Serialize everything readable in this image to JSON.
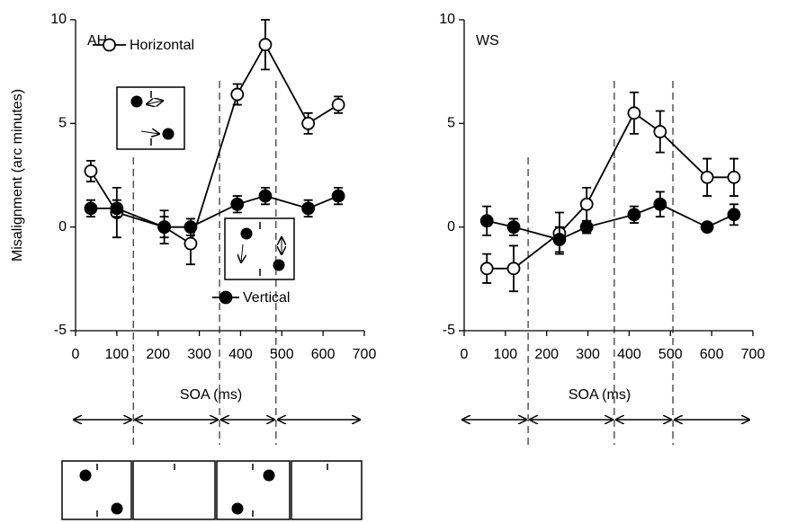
{
  "chart_data": [
    {
      "type": "line",
      "label": "AH",
      "xlabel": "SOA (ms)",
      "ylabel": "Misalignment (arc minutes)",
      "x": [
        37,
        100,
        215,
        279,
        392,
        460,
        564,
        637
      ],
      "series": [
        {
          "name": "Horizontal",
          "marker": "open",
          "color": "#000000",
          "values": [
            2.7,
            0.7,
            0,
            -0.8,
            6.4,
            8.8,
            5.0,
            5.9
          ],
          "errors": [
            0.5,
            1.2,
            0.8,
            1.0,
            0.5,
            1.2,
            0.5,
            0.4
          ]
        },
        {
          "name": "Vertical",
          "marker": "filled",
          "color": "#000000",
          "values": [
            0.9,
            0.9,
            0,
            0,
            1.1,
            1.5,
            0.9,
            1.5
          ],
          "errors": [
            0.4,
            0.4,
            0.5,
            0.4,
            0.4,
            0.4,
            0.4,
            0.4
          ]
        }
      ],
      "xlim": [
        0,
        700
      ],
      "xticks": [
        0,
        100,
        200,
        300,
        400,
        500,
        600,
        700
      ],
      "ylim": [
        -5,
        10
      ],
      "yticks": [
        -5,
        0,
        5,
        10
      ],
      "vlines": [
        140,
        349,
        486
      ]
    },
    {
      "type": "line",
      "label": "WS",
      "xlabel": "SOA (ms)",
      "x": [
        55,
        120,
        231,
        297,
        412,
        475,
        589,
        654
      ],
      "series": [
        {
          "marker": "open",
          "color": "#000000",
          "values": [
            -2.0,
            -2.0,
            -0.3,
            1.1,
            5.5,
            4.6,
            2.4,
            2.4
          ],
          "errors": [
            0.7,
            1.1,
            1.0,
            0.8,
            1.0,
            1.0,
            0.9,
            0.9
          ]
        },
        {
          "marker": "filled",
          "color": "#000000",
          "values": [
            0.3,
            0,
            -0.6,
            0,
            0.6,
            1.1,
            0,
            0.6
          ],
          "errors": [
            0.7,
            0.4,
            0.6,
            0.3,
            0.4,
            0.6,
            0.2,
            0.5
          ]
        }
      ],
      "xlim": [
        0,
        700
      ],
      "xticks": [
        0,
        100,
        200,
        300,
        400,
        500,
        600,
        700
      ],
      "ylim": [
        -5,
        10
      ],
      "yticks": [
        -5,
        0,
        5,
        10
      ],
      "vlines": [
        155,
        364,
        506
      ]
    }
  ]
}
